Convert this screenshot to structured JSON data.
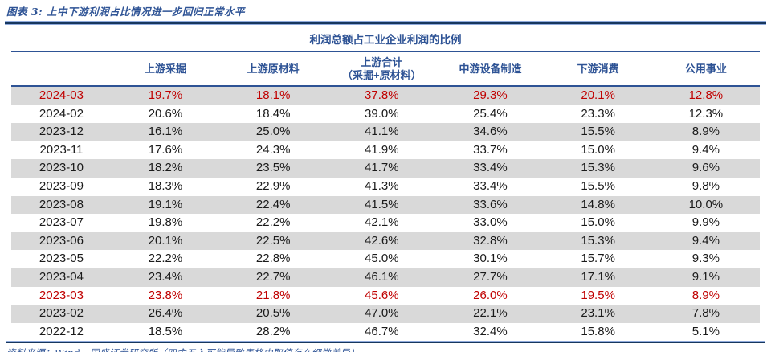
{
  "figure": {
    "caption": "图表 3: 上中下游利润占比情况进一步回归正常水平",
    "source_note": "资料来源：Wind，国盛证券研究所（四舍五入可能导致表格中取值存在细微差异）"
  },
  "colors": {
    "accent_blue": "#2E5395",
    "rule_navy": "#17375E",
    "highlight_red": "#C00000",
    "band_gray": "#D9D9D9"
  },
  "chart_data": {
    "type": "table",
    "title": "利润总额占工业企业利润的比例",
    "columns": [
      {
        "label": ""
      },
      {
        "label": "上游采掘"
      },
      {
        "label": "上游原材料"
      },
      {
        "label": "上游合计",
        "sublabel": "（采掘+原材料）"
      },
      {
        "label": "中游设备制造"
      },
      {
        "label": "下游消费"
      },
      {
        "label": "公用事业"
      }
    ],
    "rows": [
      {
        "period": "2024-03",
        "values": [
          "19.7%",
          "18.1%",
          "37.8%",
          "29.3%",
          "20.1%",
          "12.8%"
        ],
        "highlight": true
      },
      {
        "period": "2024-02",
        "values": [
          "20.6%",
          "18.4%",
          "39.0%",
          "25.4%",
          "23.3%",
          "12.3%"
        ],
        "highlight": false
      },
      {
        "period": "2023-12",
        "values": [
          "16.1%",
          "25.0%",
          "41.1%",
          "34.6%",
          "15.5%",
          "8.9%"
        ],
        "highlight": false
      },
      {
        "period": "2023-11",
        "values": [
          "17.6%",
          "24.3%",
          "41.9%",
          "33.7%",
          "15.0%",
          "9.4%"
        ],
        "highlight": false
      },
      {
        "period": "2023-10",
        "values": [
          "18.2%",
          "23.5%",
          "41.7%",
          "33.4%",
          "15.3%",
          "9.6%"
        ],
        "highlight": false
      },
      {
        "period": "2023-09",
        "values": [
          "18.3%",
          "22.9%",
          "41.3%",
          "33.4%",
          "15.5%",
          "9.8%"
        ],
        "highlight": false
      },
      {
        "period": "2023-08",
        "values": [
          "19.1%",
          "22.4%",
          "41.5%",
          "33.6%",
          "14.8%",
          "10.0%"
        ],
        "highlight": false
      },
      {
        "period": "2023-07",
        "values": [
          "19.8%",
          "22.2%",
          "42.1%",
          "33.0%",
          "15.0%",
          "9.9%"
        ],
        "highlight": false
      },
      {
        "period": "2023-06",
        "values": [
          "20.1%",
          "22.5%",
          "42.6%",
          "32.8%",
          "15.3%",
          "9.4%"
        ],
        "highlight": false
      },
      {
        "period": "2023-05",
        "values": [
          "22.2%",
          "22.8%",
          "45.0%",
          "30.1%",
          "15.7%",
          "9.3%"
        ],
        "highlight": false
      },
      {
        "period": "2023-04",
        "values": [
          "23.4%",
          "22.7%",
          "46.1%",
          "27.7%",
          "17.1%",
          "9.1%"
        ],
        "highlight": false
      },
      {
        "period": "2023-03",
        "values": [
          "23.8%",
          "21.8%",
          "45.6%",
          "26.0%",
          "19.5%",
          "8.9%"
        ],
        "highlight": true
      },
      {
        "period": "2023-02",
        "values": [
          "26.4%",
          "20.5%",
          "47.0%",
          "22.1%",
          "23.1%",
          "7.8%"
        ],
        "highlight": false
      },
      {
        "period": "2022-12",
        "values": [
          "18.5%",
          "28.2%",
          "46.7%",
          "32.4%",
          "15.8%",
          "5.1%"
        ],
        "highlight": false
      }
    ]
  }
}
